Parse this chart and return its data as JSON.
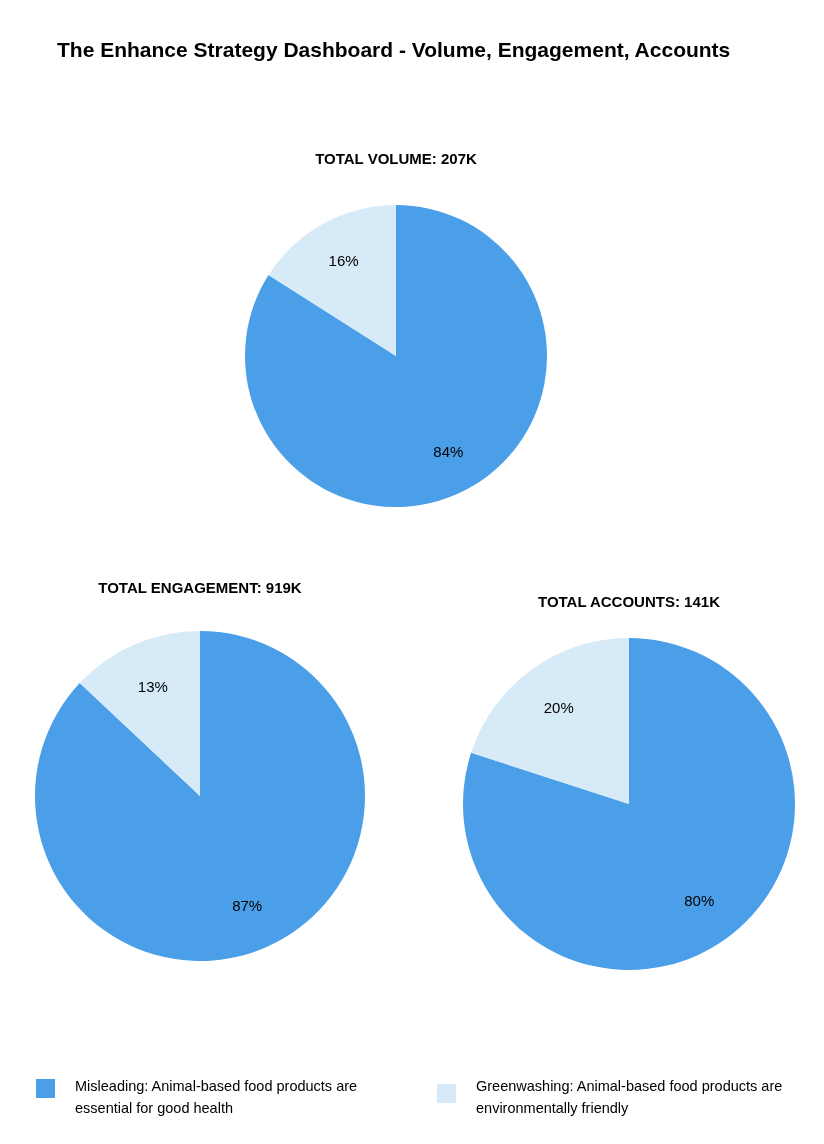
{
  "chart_data": [
    {
      "type": "other",
      "title": "The Enhance Strategy Dashboard - Volume, Engagement, Accounts"
    },
    {
      "type": "pie",
      "title": "TOTAL VOLUME: 207K",
      "categories": [
        "Misleading: Animal-based food products are essential for good health",
        "Greenwashing: Animal-based food products are environmentally friendly"
      ],
      "values": [
        84,
        16
      ],
      "value_labels": [
        "84%",
        "16%"
      ],
      "colors": [
        "#4a9fe8",
        "#d6eaf8"
      ],
      "legend": "bottom"
    },
    {
      "type": "pie",
      "title": "TOTAL ENGAGEMENT: 919K",
      "categories": [
        null,
        null
      ],
      "values": [
        87,
        13
      ],
      "value_labels": [
        "87%",
        "13%"
      ],
      "colors": [
        "#4a9fe8",
        "#d6eaf8"
      ]
    },
    {
      "type": "pie",
      "title": "TOTAL ACCOUNTS: 141K",
      "categories": [
        null,
        null
      ],
      "values": [
        80,
        20
      ],
      "value_labels": [
        "80%",
        "20%"
      ],
      "colors": [
        "#4a9fe8",
        "#d6eaf8"
      ]
    }
  ]
}
